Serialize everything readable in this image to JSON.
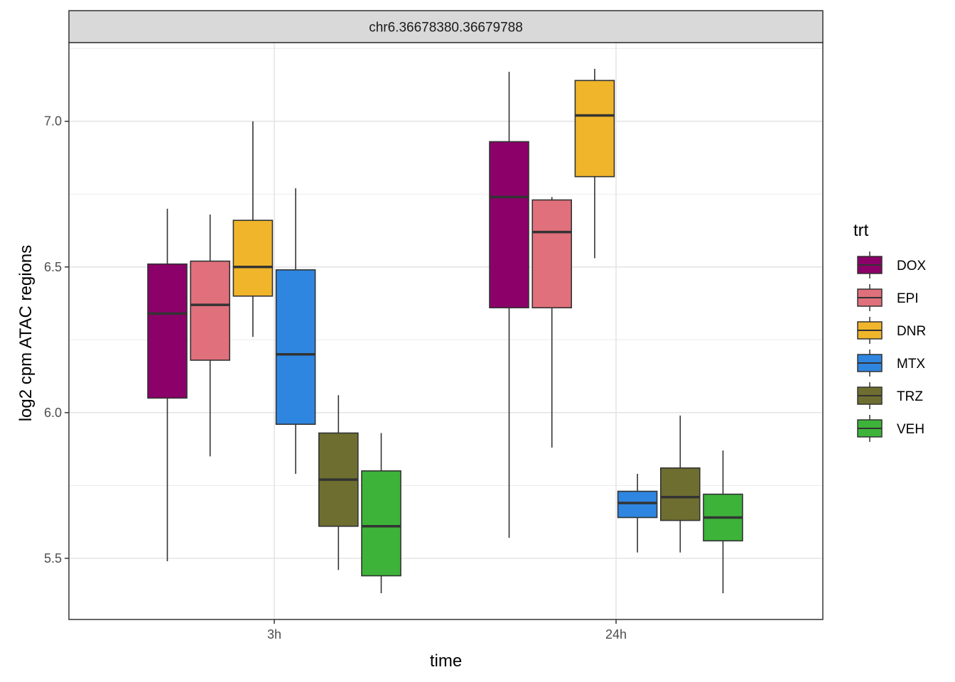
{
  "chart_data": {
    "type": "boxplot",
    "facet_title": "chr6.36678380.36679788",
    "xlabel": "time",
    "ylabel": "log2 cpm ATAC regions",
    "categories": [
      "3h",
      "24h"
    ],
    "y_ticks": [
      5.5,
      6.0,
      6.5,
      7.0
    ],
    "y_tick_labels": [
      "5.5",
      "6.0",
      "6.5",
      "7.0"
    ],
    "ylim": [
      5.29,
      7.27
    ],
    "legend_title": "trt",
    "legend_position": "right",
    "grid": true,
    "series": [
      {
        "name": "DOX",
        "color": "#8B0069",
        "boxes": [
          {
            "category": "3h",
            "min": 5.49,
            "q1": 6.05,
            "median": 6.34,
            "q3": 6.51,
            "max": 6.7
          },
          {
            "category": "24h",
            "min": 5.57,
            "q1": 6.36,
            "median": 6.74,
            "q3": 6.93,
            "max": 7.17
          }
        ]
      },
      {
        "name": "EPI",
        "color": "#E0707B",
        "boxes": [
          {
            "category": "3h",
            "min": 5.85,
            "q1": 6.18,
            "median": 6.37,
            "q3": 6.52,
            "max": 6.68
          },
          {
            "category": "24h",
            "min": 5.88,
            "q1": 6.36,
            "median": 6.62,
            "q3": 6.73,
            "max": 6.74
          }
        ]
      },
      {
        "name": "DNR",
        "color": "#F0B52A",
        "boxes": [
          {
            "category": "3h",
            "min": 6.26,
            "q1": 6.4,
            "median": 6.5,
            "q3": 6.66,
            "max": 7.0
          },
          {
            "category": "24h",
            "min": 6.53,
            "q1": 6.81,
            "median": 7.02,
            "q3": 7.14,
            "max": 7.18
          }
        ]
      },
      {
        "name": "MTX",
        "color": "#2E86E0",
        "boxes": [
          {
            "category": "3h",
            "min": 5.79,
            "q1": 5.96,
            "median": 6.2,
            "q3": 6.49,
            "max": 6.77
          },
          {
            "category": "24h",
            "min": 5.52,
            "q1": 5.64,
            "median": 5.69,
            "q3": 5.73,
            "max": 5.79
          }
        ]
      },
      {
        "name": "TRZ",
        "color": "#6E6E30",
        "boxes": [
          {
            "category": "3h",
            "min": 5.46,
            "q1": 5.61,
            "median": 5.77,
            "q3": 5.93,
            "max": 6.06
          },
          {
            "category": "24h",
            "min": 5.52,
            "q1": 5.63,
            "median": 5.71,
            "q3": 5.81,
            "max": 5.99
          }
        ]
      },
      {
        "name": "VEH",
        "color": "#3DB33A",
        "boxes": [
          {
            "category": "3h",
            "min": 5.38,
            "q1": 5.44,
            "median": 5.61,
            "q3": 5.8,
            "max": 5.93
          },
          {
            "category": "24h",
            "min": 5.38,
            "q1": 5.56,
            "median": 5.64,
            "q3": 5.72,
            "max": 5.87
          }
        ]
      }
    ]
  }
}
